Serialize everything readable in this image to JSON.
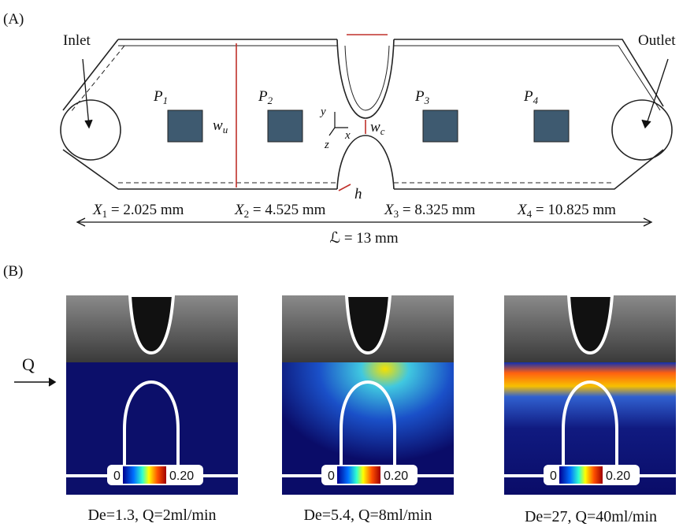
{
  "panel_a": {
    "label": "(A)",
    "inlet": "Inlet",
    "outlet": "Outlet",
    "probes": [
      {
        "symbol": "P",
        "sub": "1"
      },
      {
        "symbol": "P",
        "sub": "2"
      },
      {
        "symbol": "P",
        "sub": "3"
      },
      {
        "symbol": "P",
        "sub": "4"
      }
    ],
    "width_upstream": {
      "symbol": "w",
      "sub": "u"
    },
    "width_constriction": {
      "symbol": "w",
      "sub": "c"
    },
    "depth": "h",
    "axes": {
      "y": "y",
      "x": "x",
      "z": "z"
    },
    "positions": [
      {
        "symbol": "X",
        "sub": "1",
        "text": " = 2.025 mm"
      },
      {
        "symbol": "X",
        "sub": "2",
        "text": " = 4.525 mm"
      },
      {
        "symbol": "X",
        "sub": "3",
        "text": " = 8.325 mm"
      },
      {
        "symbol": "X",
        "sub": "4",
        "text": " = 10.825 mm"
      }
    ],
    "length": "ℒ = 13 mm"
  },
  "panel_b": {
    "label": "(B)",
    "flow": "Q",
    "panels": [
      {
        "colorbar_min": "0",
        "colorbar_max": "0.20",
        "caption": "De=1.3, Q=2ml/min"
      },
      {
        "colorbar_min": "0",
        "colorbar_max": "0.20",
        "caption": "De=5.4, Q=8ml/min"
      },
      {
        "colorbar_min": "0",
        "colorbar_max": "0.20",
        "caption": "De=27, Q=40ml/min"
      }
    ]
  }
}
